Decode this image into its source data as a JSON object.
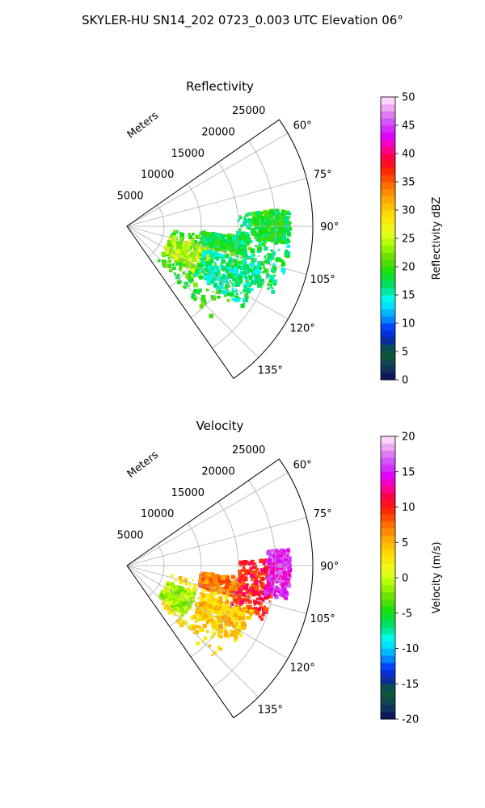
{
  "suptitle": "SKYLER-HU  SN14_202  0723_0.003 UTC Elevation 06°",
  "chart_data": [
    {
      "type": "heatmap",
      "projection": "polar-sector",
      "title": "Reflectivity",
      "radial_label": "Meters",
      "radial_ticks": [
        5000,
        10000,
        15000,
        20000,
        25000
      ],
      "r_max": 25000,
      "azimuth_ticks": [
        60,
        75,
        90,
        105,
        120,
        135
      ],
      "azimuth_range": [
        55,
        145
      ],
      "grid": true,
      "colorbar": {
        "label": "Reflectivity dBZ",
        "range": [
          0,
          50
        ],
        "ticks": [
          0,
          5,
          10,
          15,
          20,
          25,
          30,
          35,
          40,
          45,
          50
        ]
      },
      "echo_regions": [
        {
          "az": [
            96,
            138
          ],
          "r": [
            6000,
            17000
          ],
          "value": 20
        },
        {
          "az": [
            103,
            124
          ],
          "r": [
            6000,
            12000
          ],
          "value": 24
        },
        {
          "az": [
            95,
            103
          ],
          "r": [
            10000,
            16000
          ],
          "value": 18
        },
        {
          "az": [
            84,
            115
          ],
          "r": [
            15000,
            22000
          ],
          "value": 17
        },
        {
          "az": [
            84,
            96
          ],
          "r": [
            17000,
            22000
          ],
          "value": 19
        },
        {
          "az": [
            107,
            125
          ],
          "r": [
            11000,
            19000
          ],
          "value": 16
        }
      ]
    },
    {
      "type": "heatmap",
      "projection": "polar-sector",
      "title": "Velocity",
      "radial_label": "Meters",
      "radial_ticks": [
        5000,
        10000,
        15000,
        20000,
        25000
      ],
      "r_max": 25000,
      "azimuth_ticks": [
        60,
        75,
        90,
        105,
        120,
        135
      ],
      "azimuth_range": [
        55,
        145
      ],
      "grid": true,
      "colorbar": {
        "label": "Velocity (m/s)",
        "range": [
          -20,
          20
        ],
        "ticks": [
          -20,
          -15,
          -10,
          -5,
          0,
          5,
          10,
          15,
          20
        ]
      },
      "echo_regions": [
        {
          "az": [
            102,
            138
          ],
          "r": [
            6000,
            17000
          ],
          "value": 3
        },
        {
          "az": [
            112,
            132
          ],
          "r": [
            6000,
            10000
          ],
          "value": -1
        },
        {
          "az": [
            96,
            106
          ],
          "r": [
            10000,
            16000
          ],
          "value": 7
        },
        {
          "az": [
            88,
            112
          ],
          "r": [
            15000,
            20000
          ],
          "value": 10
        },
        {
          "az": [
            84,
            102
          ],
          "r": [
            19000,
            22000
          ],
          "value": 15
        },
        {
          "az": [
            110,
            125
          ],
          "r": [
            11000,
            18000
          ],
          "value": 4
        }
      ]
    }
  ]
}
